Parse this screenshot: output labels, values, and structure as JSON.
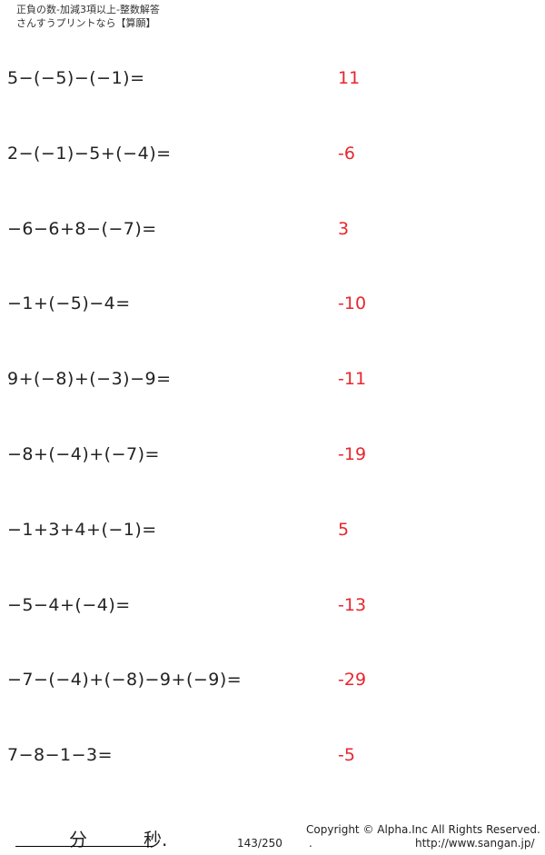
{
  "header": {
    "title": "正負の数-加減3項以上-整数解答",
    "subtitle": "さんすうプリントなら【算願】"
  },
  "problems": [
    {
      "question": "5−(−5)−(−1)=",
      "answer": "11"
    },
    {
      "question": "2−(−1)−5+(−4)=",
      "answer": "-6"
    },
    {
      "question": "−6−6+8−(−7)=",
      "answer": "3"
    },
    {
      "question": "−1+(−5)−4=",
      "answer": "-10"
    },
    {
      "question": "9+(−8)+(−3)−9=",
      "answer": "-11"
    },
    {
      "question": "−8+(−4)+(−7)=",
      "answer": "-19"
    },
    {
      "question": "−1+3+4+(−1)=",
      "answer": "5"
    },
    {
      "question": "−5−4+(−4)=",
      "answer": "-13"
    },
    {
      "question": "−7−(−4)+(−8)−9+(−9)=",
      "answer": "-29"
    },
    {
      "question": "7−8−1−3=",
      "answer": "-5"
    }
  ],
  "footer": {
    "minutes_label": "分",
    "seconds_label": "秒.",
    "page": "143/250",
    "copyright": "Copyright ©  Alpha.Inc All Rights Reserved.",
    "dot": ".",
    "url": "http://www.sangan.jp/"
  },
  "colors": {
    "answer": "#e8262d"
  }
}
